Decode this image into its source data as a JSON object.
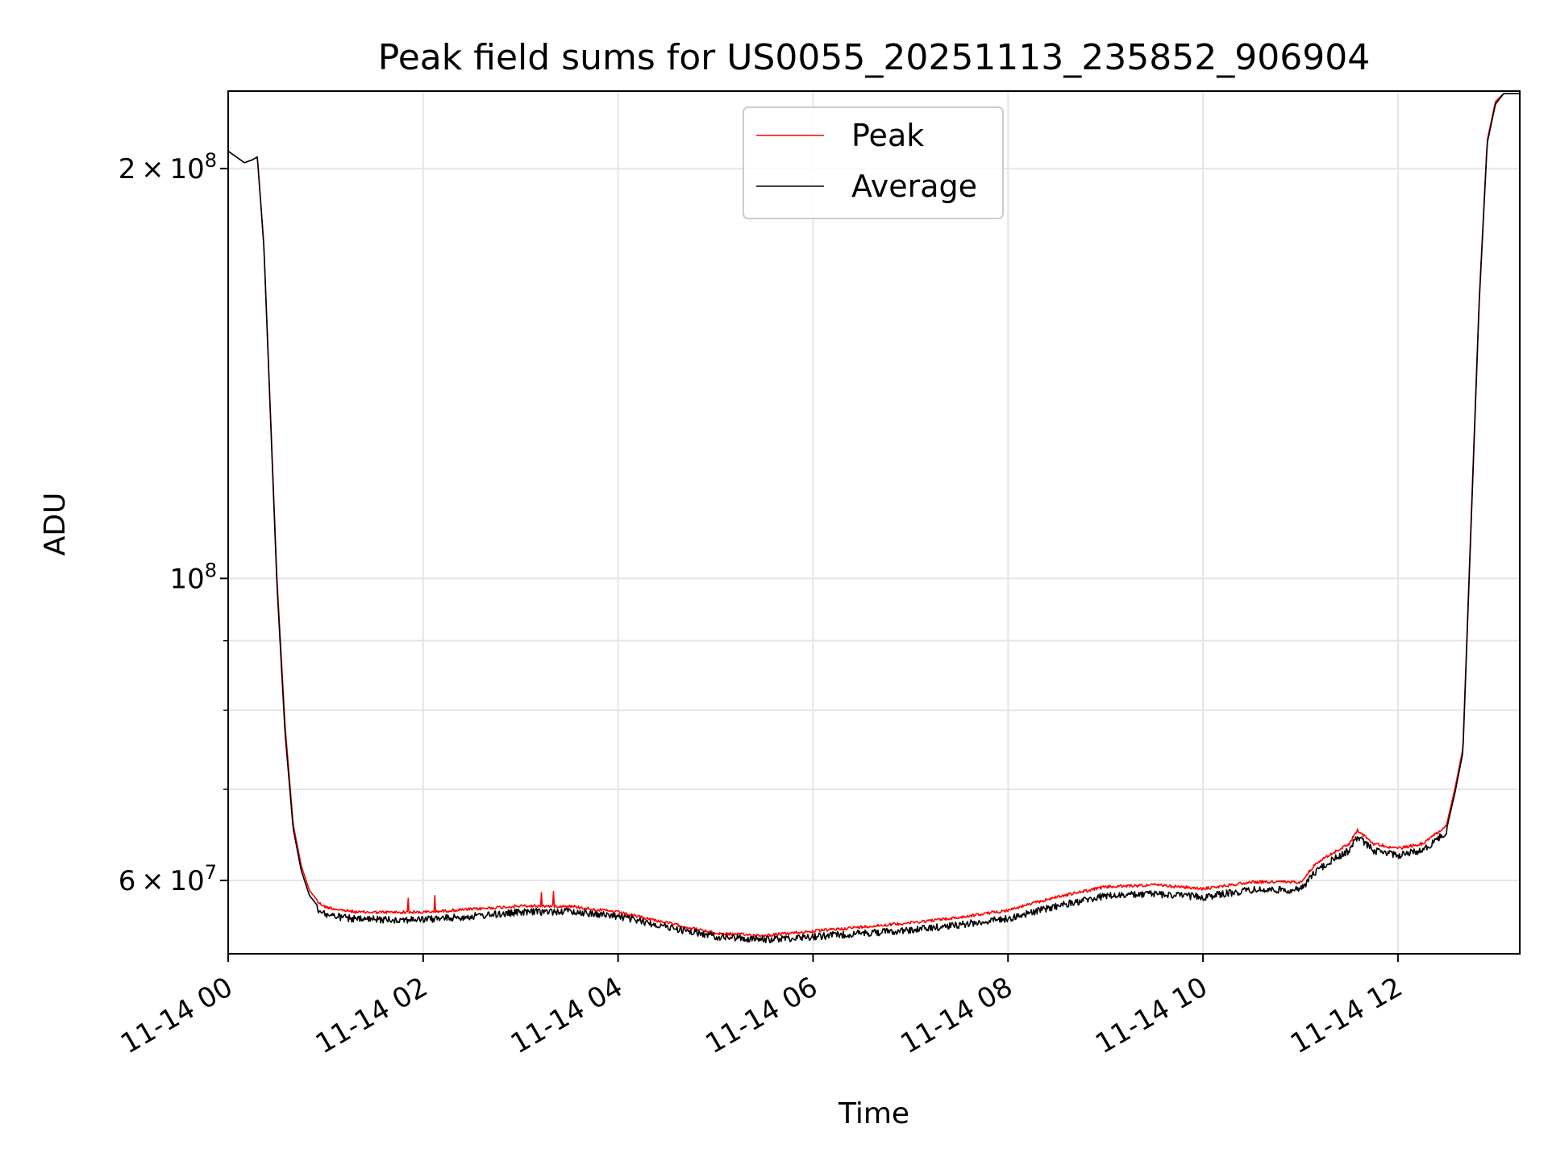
{
  "chart_data": {
    "type": "line",
    "title": "Peak field sums for US0055_20251113_235852_906904",
    "xlabel": "Time",
    "ylabel": "ADU",
    "x_range_hours": [
      "11-14 00:00",
      "11-14 13:15"
    ],
    "x_ticks": [
      "11-14 00",
      "11-14 02",
      "11-14 04",
      "11-14 06",
      "11-14 08",
      "11-14 10",
      "11-14 12"
    ],
    "y_scale": "log",
    "ylim": [
      53000000,
      228000000
    ],
    "y_ticks": [
      {
        "value": 200000000,
        "mantissa": "2",
        "exp": "8"
      },
      {
        "value": 100000000,
        "mantissa": "",
        "exp": "8"
      },
      {
        "value": 60000000,
        "mantissa": "6",
        "exp": "7"
      }
    ],
    "y_minor_ticks": [
      70000000,
      80000000,
      90000000
    ],
    "grid": true,
    "legend_position": "top-center",
    "series": [
      {
        "name": "Peak",
        "color": "#ff0000",
        "x": [
          "00:00",
          "00:10",
          "00:15",
          "00:18",
          "00:22",
          "00:30",
          "00:35",
          "00:40",
          "00:45",
          "00:50",
          "00:55",
          "01:00",
          "01:10",
          "01:20",
          "01:30",
          "02:00",
          "02:30",
          "03:00",
          "03:30",
          "04:00",
          "04:30",
          "05:00",
          "05:30",
          "06:00",
          "06:30",
          "07:00",
          "07:30",
          "08:00",
          "08:30",
          "09:00",
          "09:30",
          "10:00",
          "10:30",
          "11:00",
          "11:10",
          "11:20",
          "11:30",
          "11:35",
          "11:45",
          "12:00",
          "12:15",
          "12:30",
          "12:35",
          "12:40",
          "12:45",
          "12:50",
          "12:55",
          "13:00",
          "13:05",
          "13:15"
        ],
        "y": [
          206000000,
          202000000,
          203000000,
          204000000,
          175000000,
          100000000,
          78000000,
          66000000,
          61500000,
          59000000,
          58000000,
          57500000,
          57200000,
          57000000,
          57000000,
          57000000,
          57300000,
          57600000,
          57600000,
          57000000,
          56000000,
          55000000,
          54800000,
          55200000,
          55600000,
          56000000,
          56500000,
          57200000,
          58500000,
          59500000,
          59700000,
          59300000,
          60000000,
          60000000,
          62000000,
          63000000,
          64000000,
          65500000,
          64000000,
          63500000,
          64000000,
          66000000,
          70000000,
          75000000,
          110000000,
          160000000,
          210000000,
          224000000,
          227000000,
          227000000
        ]
      },
      {
        "name": "Average",
        "color": "#000000",
        "x": [
          "00:00",
          "00:10",
          "00:15",
          "00:18",
          "00:22",
          "00:30",
          "00:35",
          "00:40",
          "00:45",
          "00:50",
          "00:55",
          "01:00",
          "01:10",
          "01:20",
          "01:30",
          "02:00",
          "02:30",
          "03:00",
          "03:30",
          "04:00",
          "04:30",
          "05:00",
          "05:30",
          "06:00",
          "06:30",
          "07:00",
          "07:30",
          "08:00",
          "08:30",
          "09:00",
          "09:30",
          "10:00",
          "10:30",
          "11:00",
          "11:10",
          "11:20",
          "11:30",
          "11:35",
          "11:45",
          "12:00",
          "12:15",
          "12:30",
          "12:35",
          "12:40",
          "12:45",
          "12:50",
          "12:55",
          "13:00",
          "13:05",
          "13:15"
        ],
        "y": [
          206000000,
          202000000,
          203000000,
          204000000,
          175000000,
          99000000,
          77000000,
          65500000,
          61000000,
          58500000,
          57500000,
          57000000,
          56700000,
          56500000,
          56500000,
          56500000,
          56800000,
          57200000,
          57300000,
          56800000,
          55800000,
          54900000,
          54600000,
          54900000,
          55200000,
          55500000,
          56000000,
          56600000,
          57800000,
          58800000,
          59000000,
          58700000,
          59400000,
          59400000,
          61400000,
          62500000,
          63500000,
          65000000,
          63500000,
          63000000,
          63500000,
          65500000,
          69500000,
          74500000,
          109000000,
          159000000,
          209000000,
          223000000,
          227000000,
          227000000
        ]
      }
    ]
  }
}
